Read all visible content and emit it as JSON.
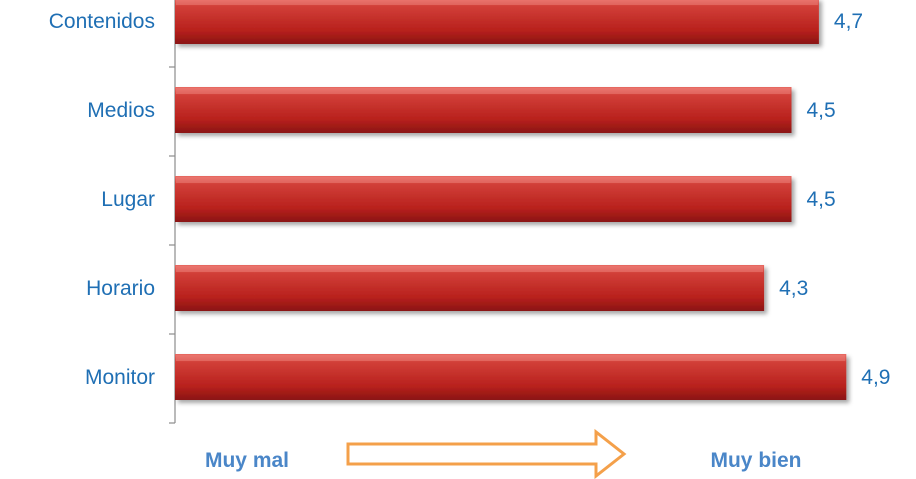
{
  "chart_data": {
    "type": "bar",
    "orientation": "horizontal",
    "categories": [
      "Contenidos",
      "Medios",
      "Lugar",
      "Horario",
      "Monitor"
    ],
    "values": [
      4.7,
      4.5,
      4.5,
      4.3,
      4.9
    ],
    "value_labels": [
      "4,7",
      "4,5",
      "4,5",
      "4,3",
      "4,9"
    ],
    "title": "",
    "xlabel": "",
    "ylabel": "",
    "xlim": [
      0,
      5
    ],
    "grid": false,
    "legend": "none",
    "bar_color": "#c0302c",
    "label_color": "#1f6fb4"
  },
  "scale": {
    "low_label": "Muy mal",
    "high_label": "Muy bien",
    "arrow_color": "#f4a04a",
    "text_color": "#4a86c8"
  }
}
